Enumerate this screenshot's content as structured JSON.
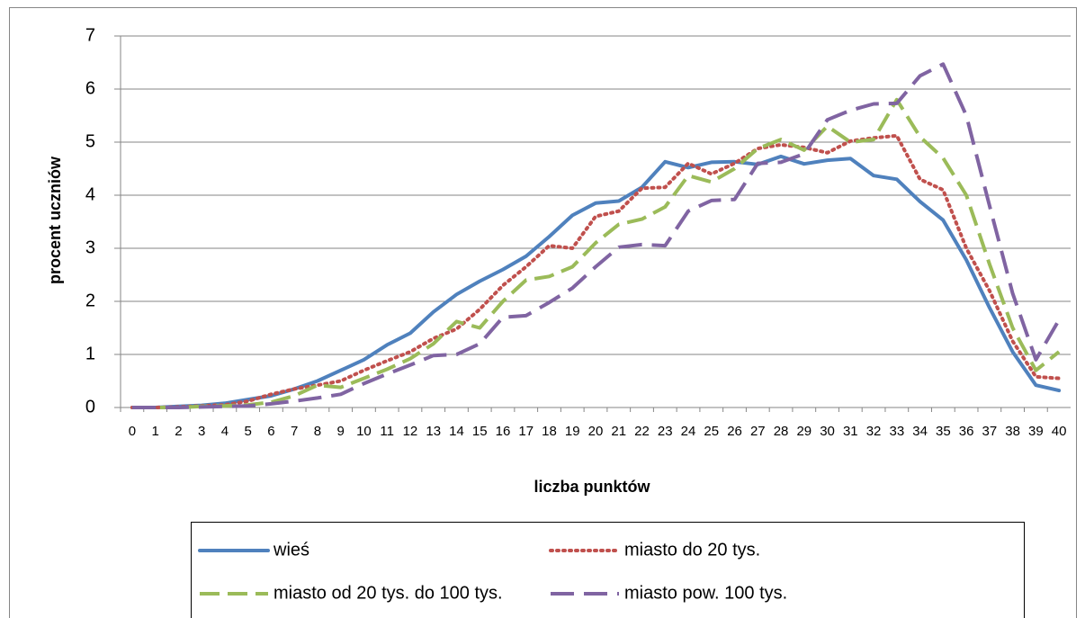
{
  "chart_data": {
    "type": "line",
    "x_label": "liczba punktów",
    "y_label": "procent uczniów",
    "categories": [
      "0",
      "1",
      "2",
      "3",
      "4",
      "5",
      "6",
      "7",
      "8",
      "9",
      "10",
      "11",
      "12",
      "13",
      "14",
      "15",
      "16",
      "17",
      "18",
      "19",
      "20",
      "21",
      "22",
      "23",
      "24",
      "25",
      "26",
      "27",
      "28",
      "29",
      "30",
      "31",
      "32",
      "33",
      "34",
      "35",
      "36",
      "37",
      "38",
      "39",
      "40"
    ],
    "series": [
      {
        "name": "wieś",
        "color": "#4f81bd",
        "style": "solid",
        "values": [
          0,
          0,
          0.02,
          0.04,
          0.08,
          0.15,
          0.22,
          0.35,
          0.5,
          0.7,
          0.9,
          1.18,
          1.4,
          1.8,
          2.13,
          2.38,
          2.6,
          2.85,
          3.22,
          3.62,
          3.85,
          3.89,
          4.15,
          4.63,
          4.52,
          4.62,
          4.63,
          4.58,
          4.73,
          4.59,
          4.66,
          4.69,
          4.37,
          4.3,
          3.88,
          3.53,
          2.78,
          1.88,
          1.05,
          0.42,
          0.32
        ]
      },
      {
        "name": "miasto do 20 tys.",
        "color": "#c0504d",
        "style": "dotted",
        "values": [
          0,
          0,
          0.01,
          0.03,
          0.05,
          0.12,
          0.25,
          0.35,
          0.42,
          0.5,
          0.7,
          0.88,
          1.05,
          1.3,
          1.48,
          1.85,
          2.3,
          2.65,
          3.05,
          3.0,
          3.6,
          3.7,
          4.13,
          4.15,
          4.6,
          4.4,
          4.6,
          4.88,
          4.95,
          4.9,
          4.8,
          5.02,
          5.08,
          5.12,
          4.3,
          4.1,
          3.0,
          2.2,
          1.25,
          0.58,
          0.55
        ]
      },
      {
        "name": "miasto od 20 tys. do 100 tys.",
        "color": "#9bbb59",
        "style": "dashed",
        "values": [
          0,
          0,
          0,
          0.02,
          0.03,
          0.05,
          0.1,
          0.22,
          0.42,
          0.38,
          0.55,
          0.72,
          0.92,
          1.2,
          1.62,
          1.5,
          2.0,
          2.4,
          2.47,
          2.65,
          3.1,
          3.45,
          3.55,
          3.78,
          4.37,
          4.25,
          4.5,
          4.88,
          5.05,
          4.85,
          5.3,
          5.0,
          5.05,
          5.8,
          5.1,
          4.7,
          4.0,
          2.7,
          1.5,
          0.7,
          1.05
        ]
      },
      {
        "name": "miasto pow. 100 tys.",
        "color": "#8064a2",
        "style": "long-dash",
        "values": [
          0,
          0,
          0,
          0.01,
          0.02,
          0.03,
          0.07,
          0.12,
          0.18,
          0.25,
          0.45,
          0.63,
          0.8,
          0.98,
          1.0,
          1.2,
          1.7,
          1.73,
          1.98,
          2.25,
          2.65,
          3.02,
          3.07,
          3.05,
          3.7,
          3.9,
          3.92,
          4.6,
          4.62,
          4.78,
          5.42,
          5.6,
          5.72,
          5.73,
          6.25,
          6.47,
          5.5,
          3.8,
          2.15,
          0.9,
          1.65
        ]
      }
    ],
    "ylim": [
      0,
      7
    ],
    "yticks": [
      0,
      1,
      2,
      3,
      4,
      5,
      6,
      7
    ],
    "grid": true
  }
}
